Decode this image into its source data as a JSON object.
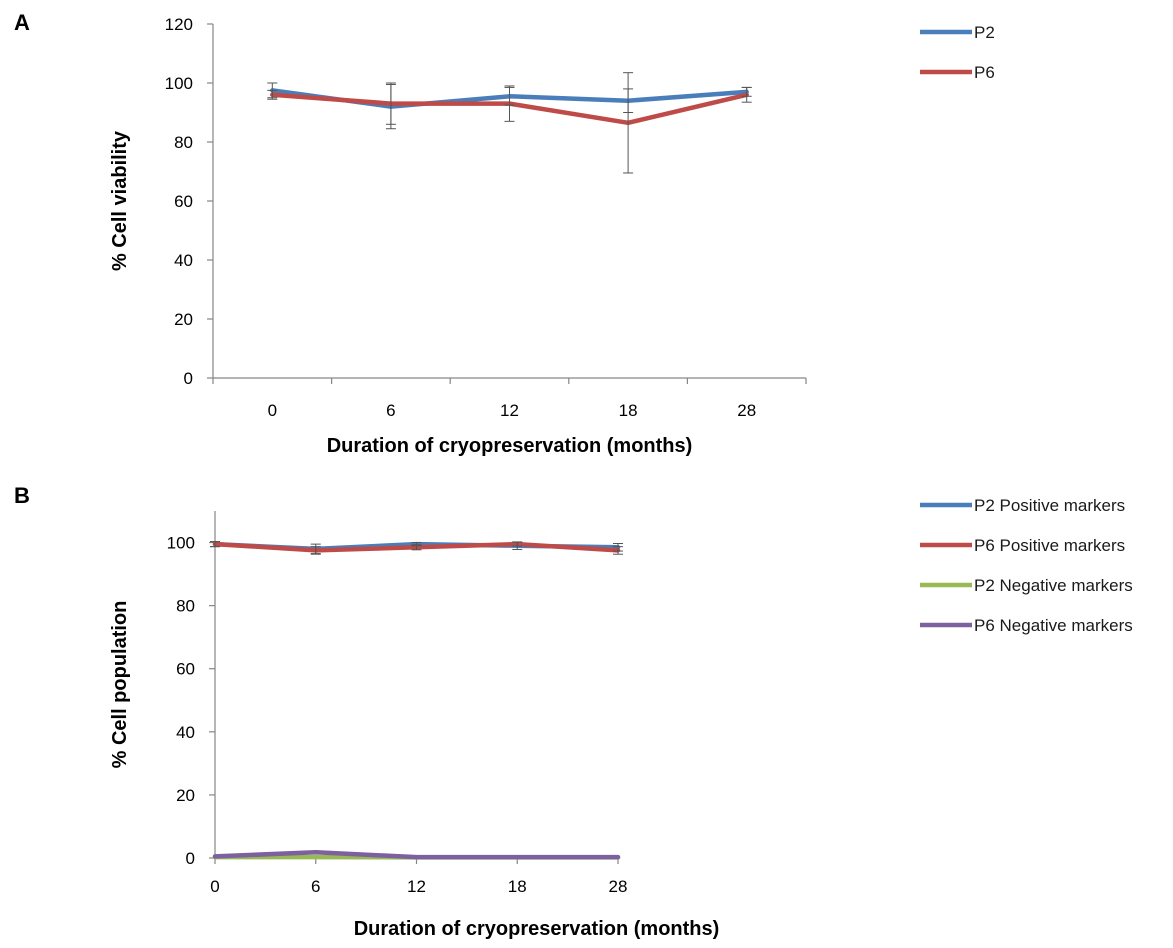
{
  "chart_data": [
    {
      "panel_label": "A",
      "type": "line",
      "categories": [
        "0",
        "6",
        "12",
        "18",
        "28"
      ],
      "xlabel": "Duration of cryopreservation (months)",
      "ylabel": "% Cell viability",
      "ylim": [
        0,
        120
      ],
      "yticks": [
        "0",
        "20",
        "40",
        "60",
        "80",
        "100",
        "120"
      ],
      "legend_position": "top-right",
      "grid": false,
      "series": [
        {
          "name": "P2",
          "color": "#4a7ebb",
          "values": [
            97.5,
            92,
            95.5,
            94,
            97
          ],
          "errors": [
            2.5,
            7.5,
            3,
            4,
            1.5
          ]
        },
        {
          "name": "P6",
          "color": "#be4b48",
          "values": [
            96,
            93,
            93,
            86.5,
            96
          ],
          "errors": [
            1.5,
            7,
            6,
            17,
            2.5
          ]
        }
      ]
    },
    {
      "panel_label": "B",
      "type": "line",
      "categories": [
        "0",
        "6",
        "12",
        "18",
        "28"
      ],
      "xlabel": "Duration of cryopreservation (months)",
      "ylabel": "% Cell population",
      "ylim": [
        0,
        110
      ],
      "yticks": [
        "0",
        "20",
        "40",
        "60",
        "80",
        "100"
      ],
      "legend_position": "top-right",
      "grid": false,
      "series": [
        {
          "name": "P2 Positive markers",
          "color": "#4a7ebb",
          "values": [
            99.5,
            98,
            99.5,
            99,
            98.5
          ],
          "errors": [
            0.8,
            1.5,
            0.5,
            1.2,
            1.2
          ]
        },
        {
          "name": "P6 Positive markers",
          "color": "#be4b48",
          "values": [
            99.5,
            97.5,
            98.5,
            99.5,
            97.5
          ],
          "errors": [
            0.8,
            1.2,
            0.8,
            0.6,
            1.2
          ]
        },
        {
          "name": "P2 Negative markers",
          "color": "#98b954",
          "values": [
            0.3,
            0.3,
            0.2,
            0.2,
            0.2
          ],
          "errors": [
            0,
            0,
            0,
            0,
            0
          ]
        },
        {
          "name": "P6 Negative markers",
          "color": "#7d60a0",
          "values": [
            0.5,
            1.8,
            0.3,
            0.3,
            0.3
          ],
          "errors": [
            0,
            0,
            0,
            0,
            0
          ]
        }
      ]
    }
  ]
}
